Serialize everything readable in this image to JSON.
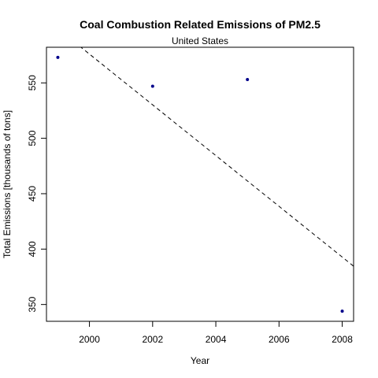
{
  "chart_data": {
    "type": "scatter",
    "title": "Coal Combustion Related Emissions of PM2.5",
    "subtitle": "United States",
    "xlabel": "Year",
    "ylabel": "Total Emissions [thousands of tons]",
    "xlim": [
      1999,
      2008
    ],
    "ylim": [
      344,
      573
    ],
    "x_ticks": [
      2000,
      2002,
      2004,
      2006,
      2008
    ],
    "y_ticks": [
      350,
      400,
      450,
      500,
      550
    ],
    "grid": false,
    "points": [
      {
        "x": 1999,
        "y": 573
      },
      {
        "x": 2002,
        "y": 547
      },
      {
        "x": 2005,
        "y": 553
      },
      {
        "x": 2008,
        "y": 344
      }
    ],
    "trendline": {
      "style": "dashed",
      "slope": -22.9,
      "intercept": 46376
    },
    "colors": {
      "points": "#00008b",
      "trendline": "#000000",
      "axes": "#000000"
    }
  }
}
